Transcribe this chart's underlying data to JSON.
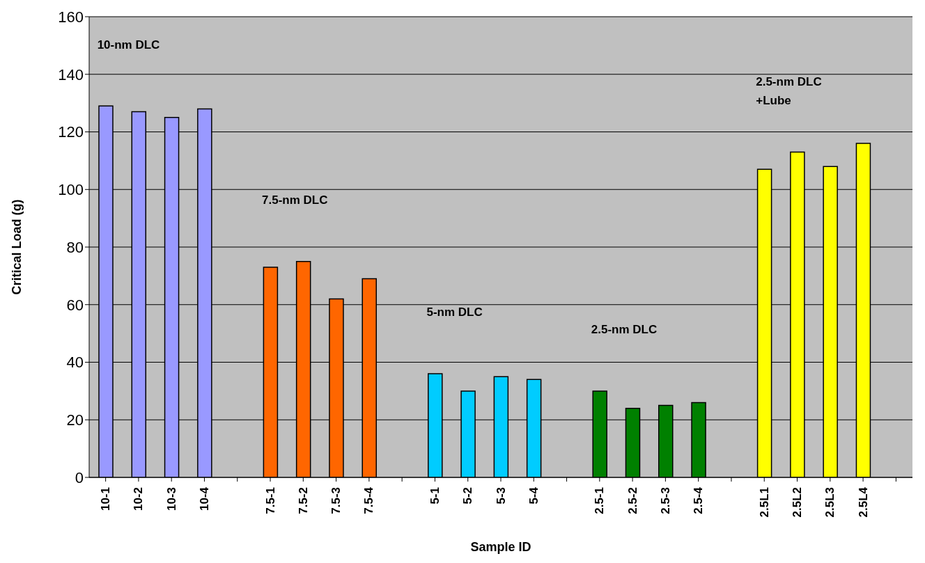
{
  "chart_data": {
    "type": "bar",
    "xlabel": "Sample ID",
    "ylabel": "Critical Load (g)",
    "categories": [
      "10-1",
      "10-2",
      "10-3",
      "10-4",
      null,
      "7.5-1",
      "7.5-2",
      "7.5-3",
      "7.5-4",
      null,
      "5-1",
      "5-2",
      "5-3",
      "5-4",
      null,
      "2.5-1",
      "2.5-2",
      "2.5-3",
      "2.5-4",
      null,
      "2.5L1",
      "2.5L2",
      "2.5L3",
      "2.5L4",
      null
    ],
    "values": [
      129,
      127,
      125,
      128,
      null,
      73,
      75,
      62,
      69,
      null,
      36,
      30,
      35,
      34,
      null,
      30,
      24,
      25,
      26,
      null,
      107,
      113,
      108,
      116,
      null
    ],
    "colors": [
      "#9999ff",
      "#9999ff",
      "#9999ff",
      "#9999ff",
      null,
      "#ff6600",
      "#ff6600",
      "#ff6600",
      "#ff6600",
      null,
      "#00ccff",
      "#00ccff",
      "#00ccff",
      "#00ccff",
      null,
      "#008000",
      "#008000",
      "#008000",
      "#008000",
      null,
      "#ffff00",
      "#ffff00",
      "#ffff00",
      "#ffff00",
      null
    ],
    "ylim": [
      0,
      160
    ],
    "yticks": [
      0,
      20,
      40,
      60,
      80,
      100,
      120,
      140,
      160
    ],
    "grid": "y",
    "legend": false,
    "annotations": [
      "10-nm DLC",
      "7.5-nm DLC",
      "5-nm DLC",
      "2.5-nm DLC",
      "2.5-nm DLC\n+Lube"
    ]
  }
}
